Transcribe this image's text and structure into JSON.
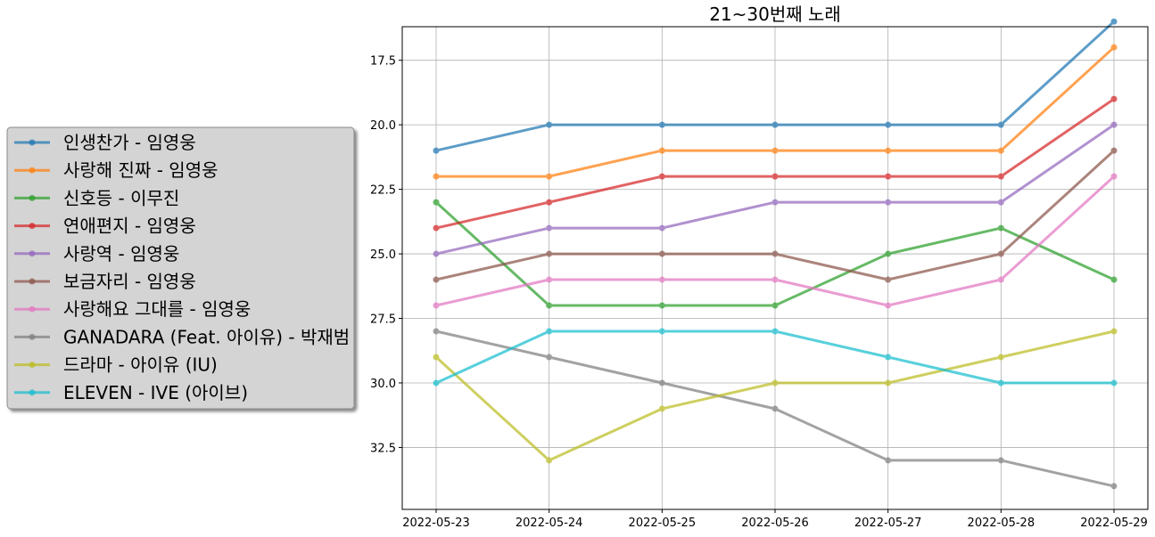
{
  "chart_data": {
    "type": "line",
    "title": "21~30번째 노래",
    "xlabel": "",
    "ylabel": "",
    "y_inverted": true,
    "ylim": [
      16.2,
      34.9
    ],
    "y_ticks": [
      "17.5",
      "20.0",
      "22.5",
      "25.0",
      "27.5",
      "30.0",
      "32.5"
    ],
    "grid": true,
    "legend_position": "left-center-outside",
    "categories": [
      "2022-05-23",
      "2022-05-24",
      "2022-05-25",
      "2022-05-26",
      "2022-05-27",
      "2022-05-28",
      "2022-05-29"
    ],
    "series": [
      {
        "name": "인생찬가 - 임영웅",
        "color": "#1f77b4",
        "values": [
          21,
          20,
          20,
          20,
          20,
          20,
          16
        ]
      },
      {
        "name": "사랑해 진짜 - 임영웅",
        "color": "#ff7f0e",
        "values": [
          22,
          22,
          21,
          21,
          21,
          21,
          17
        ]
      },
      {
        "name": "신호등 - 이무진",
        "color": "#2ca02c",
        "values": [
          23,
          27,
          27,
          27,
          25,
          24,
          26
        ]
      },
      {
        "name": "연애편지 - 임영웅",
        "color": "#d62728",
        "values": [
          24,
          23,
          22,
          22,
          22,
          22,
          19
        ]
      },
      {
        "name": "사랑역 - 임영웅",
        "color": "#9467bd",
        "values": [
          25,
          24,
          24,
          23,
          23,
          23,
          20
        ]
      },
      {
        "name": "보금자리 - 임영웅",
        "color": "#8c564b",
        "values": [
          26,
          25,
          25,
          25,
          26,
          25,
          21
        ]
      },
      {
        "name": "사랑해요 그대를 - 임영웅",
        "color": "#e377c2",
        "values": [
          27,
          26,
          26,
          26,
          27,
          26,
          22
        ]
      },
      {
        "name": "GANADARA (Feat. 아이유) - 박재범",
        "color": "#7f7f7f",
        "values": [
          28,
          29,
          30,
          31,
          33,
          33,
          34
        ]
      },
      {
        "name": "드라마 - 아이유 (IU)",
        "color": "#bcbd22",
        "values": [
          29,
          33,
          31,
          30,
          30,
          29,
          28
        ]
      },
      {
        "name": "ELEVEN - IVE (아이브)",
        "color": "#17becf",
        "values": [
          30,
          28,
          28,
          28,
          29,
          30,
          30
        ]
      }
    ]
  }
}
